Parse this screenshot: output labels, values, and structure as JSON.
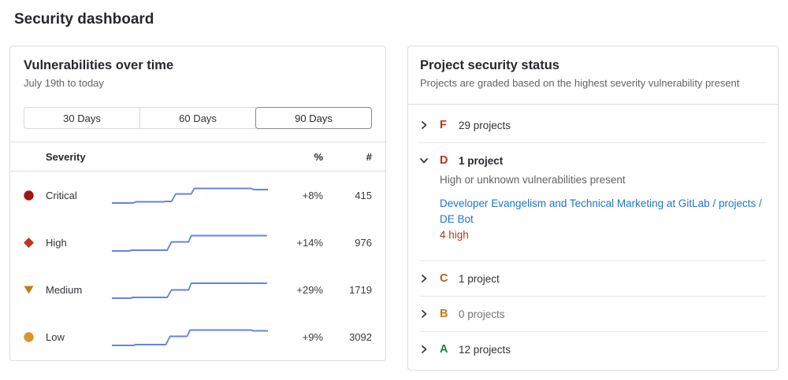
{
  "page": {
    "title": "Security dashboard"
  },
  "vulnerabilities_panel": {
    "title": "Vulnerabilities over time",
    "subtitle": "July 19th to today",
    "range_buttons": [
      {
        "label": "30 Days",
        "selected": false
      },
      {
        "label": "60 Days",
        "selected": false
      },
      {
        "label": "90 Days",
        "selected": true
      }
    ],
    "table": {
      "columns": {
        "severity": "Severity",
        "percent": "%",
        "count": "#"
      },
      "rows": [
        {
          "severity": "Critical",
          "icon": "severity-critical-icon",
          "icon_color": "#a1150e",
          "percent": "+8%",
          "count": "415"
        },
        {
          "severity": "High",
          "icon": "severity-high-icon",
          "icon_color": "#c0341d",
          "percent": "+14%",
          "count": "976"
        },
        {
          "severity": "Medium",
          "icon": "severity-medium-icon",
          "icon_color": "#c17d10",
          "percent": "+29%",
          "count": "1719"
        },
        {
          "severity": "Low",
          "icon": "severity-low-icon",
          "icon_color": "#d99530",
          "percent": "+9%",
          "count": "3092"
        }
      ]
    }
  },
  "chart_data": {
    "type": "line",
    "title": "Vulnerabilities over time",
    "x_range_label": "July 19th to today",
    "line_color": "#6582e8",
    "note": "sparkline step-trend per severity; points are svg coords in 220x30 viewBox, y inverted (lower y = more vulnerabilities)",
    "series": [
      {
        "name": "Critical",
        "percent_change": "+8%",
        "count": 415,
        "points": [
          [
            0,
            25
          ],
          [
            30,
            25
          ],
          [
            34,
            23.5
          ],
          [
            72,
            23.5
          ],
          [
            76,
            23
          ],
          [
            84,
            23
          ],
          [
            90,
            13.5
          ],
          [
            112,
            13.5
          ],
          [
            116,
            6.5
          ],
          [
            196,
            6.5
          ],
          [
            200,
            8
          ],
          [
            220,
            8
          ]
        ]
      },
      {
        "name": "High",
        "percent_change": "+14%",
        "count": 976,
        "points": [
          [
            0,
            26
          ],
          [
            24,
            26
          ],
          [
            28,
            25
          ],
          [
            78,
            25
          ],
          [
            84,
            14.5
          ],
          [
            108,
            14.5
          ],
          [
            112,
            6.5
          ],
          [
            218,
            6.5
          ]
        ]
      },
      {
        "name": "Medium",
        "percent_change": "+29%",
        "count": 1719,
        "points": [
          [
            0,
            26
          ],
          [
            26,
            26
          ],
          [
            30,
            25
          ],
          [
            78,
            25
          ],
          [
            84,
            15.5
          ],
          [
            108,
            15.5
          ],
          [
            112,
            7
          ],
          [
            218,
            7
          ]
        ]
      },
      {
        "name": "Low",
        "percent_change": "+9%",
        "count": 3092,
        "points": [
          [
            0,
            26
          ],
          [
            30,
            26
          ],
          [
            34,
            25
          ],
          [
            76,
            25
          ],
          [
            82,
            14.5
          ],
          [
            106,
            14.5
          ],
          [
            110,
            6.5
          ],
          [
            196,
            6.5
          ],
          [
            200,
            7.5
          ],
          [
            220,
            7.5
          ]
        ]
      }
    ]
  },
  "project_status_panel": {
    "title": "Project security status",
    "subtitle": "Projects are graded based on the highest severity vulnerability present",
    "grades": [
      {
        "letter": "F",
        "color": "#d02b10",
        "count_label": "29 projects",
        "expanded": false
      },
      {
        "letter": "D",
        "color": "#c5301a",
        "count_label": "1 project",
        "expanded": true,
        "description": "High or unknown vulnerabilities present",
        "project_link": "Developer Evangelism and Technical Marketing at GitLab / projects / DE Bot",
        "vulnerability_summary": "4 high"
      },
      {
        "letter": "C",
        "color": "#b95d10",
        "count_label": "1 project",
        "expanded": false
      },
      {
        "letter": "B",
        "color": "#c17d10",
        "count_label": "0 projects",
        "expanded": false
      },
      {
        "letter": "A",
        "color": "#1f8149",
        "count_label": "12 projects",
        "expanded": false
      }
    ]
  }
}
